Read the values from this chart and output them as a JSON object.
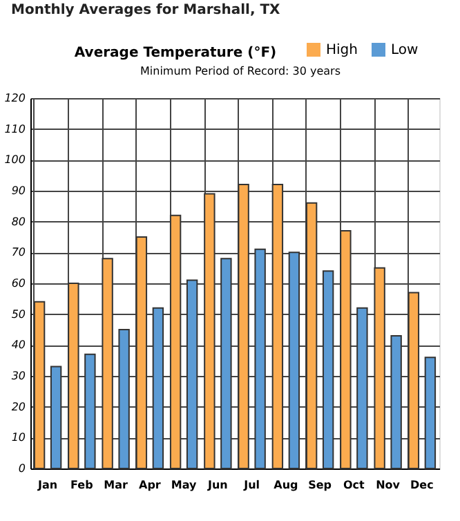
{
  "chart_data": {
    "type": "bar",
    "title": "Average Temperature (°F)",
    "subtitle": "Minimum Period of Record: 30 years",
    "annotations": [
      "Monthly Averages for Marshall, TX"
    ],
    "categories": [
      "Jan",
      "Feb",
      "Mar",
      "Apr",
      "May",
      "Jun",
      "Jul",
      "Aug",
      "Sep",
      "Oct",
      "Nov",
      "Dec"
    ],
    "series": [
      {
        "name": "High",
        "color": "#fbab4f",
        "values": [
          54,
          60,
          68,
          75,
          82,
          89,
          92,
          92,
          86,
          77,
          65,
          57
        ]
      },
      {
        "name": "Low",
        "color": "#5b9bd5",
        "values": [
          33,
          37,
          45,
          52,
          61,
          68,
          71,
          70,
          64,
          52,
          43,
          36
        ]
      }
    ],
    "ylim": [
      0,
      120
    ],
    "yticks": [
      0,
      10,
      20,
      30,
      40,
      50,
      60,
      70,
      80,
      90,
      100,
      110,
      120
    ],
    "grid": true,
    "legend": "top"
  }
}
